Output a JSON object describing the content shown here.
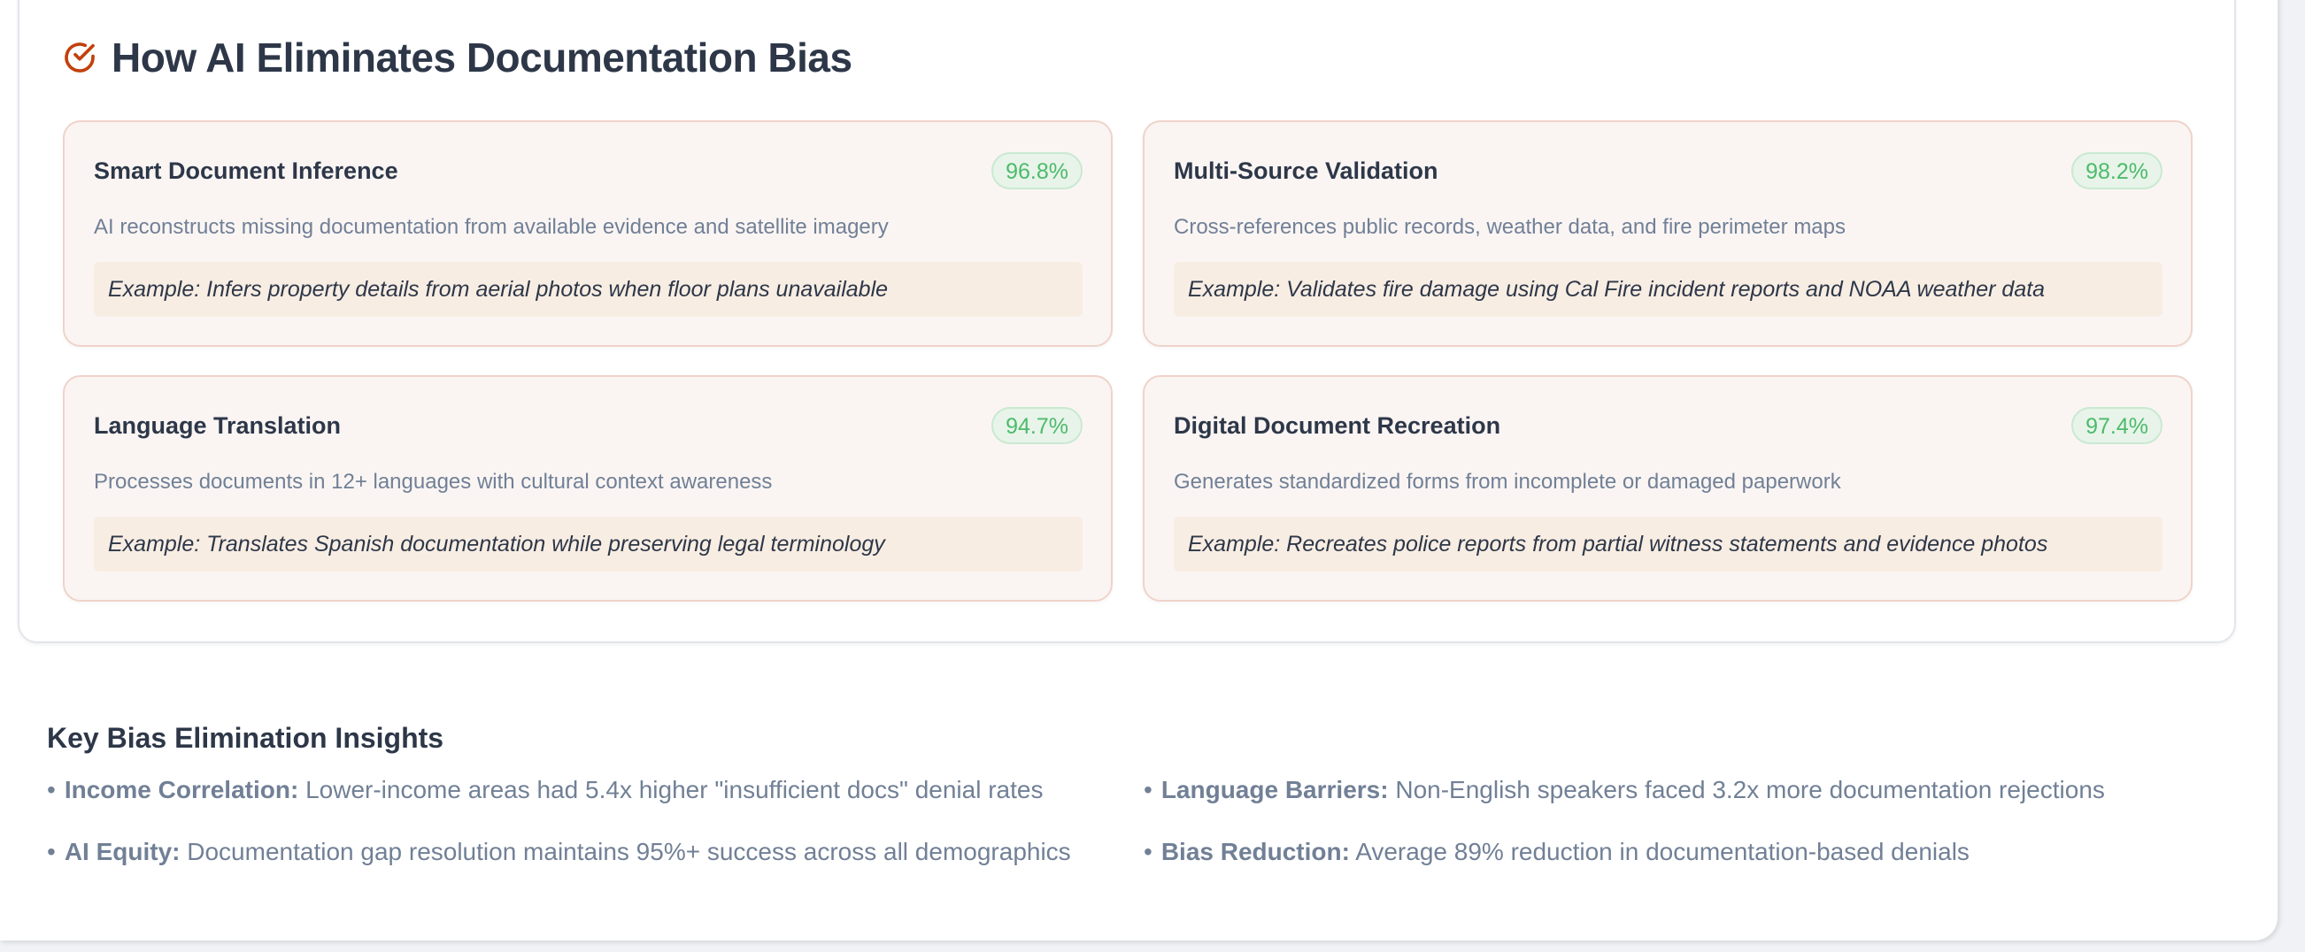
{
  "section": {
    "title": "How AI Eliminates Documentation Bias",
    "icon": "check-circle-icon",
    "accent_color": "#c2410c",
    "cards": [
      {
        "title": "Smart Document Inference",
        "badge": "96.8%",
        "description": "AI reconstructs missing documentation from available evidence and satellite imagery",
        "example": "Example: Infers property details from aerial photos when floor plans unavailable"
      },
      {
        "title": "Multi-Source Validation",
        "badge": "98.2%",
        "description": "Cross-references public records, weather data, and fire perimeter maps",
        "example": "Example: Validates fire damage using Cal Fire incident reports and NOAA weather data"
      },
      {
        "title": "Language Translation",
        "badge": "94.7%",
        "description": "Processes documents in 12+ languages with cultural context awareness",
        "example": "Example: Translates Spanish documentation while preserving legal terminology"
      },
      {
        "title": "Digital Document Recreation",
        "badge": "97.4%",
        "description": "Generates standardized forms from incomplete or damaged paperwork",
        "example": "Example: Recreates police reports from partial witness statements and evidence photos"
      }
    ]
  },
  "insights": {
    "title": "Key Bias Elimination Insights",
    "bullet": "•",
    "items": [
      {
        "label": "Income Correlation:",
        "text": "Lower-income areas had 5.4x higher \"insufficient docs\" denial rates"
      },
      {
        "label": "Language Barriers:",
        "text": "Non-English speakers faced 3.2x more documentation rejections"
      },
      {
        "label": "AI Equity:",
        "text": "Documentation gap resolution maintains 95%+ success across all demographics"
      },
      {
        "label": "Bias Reduction:",
        "text": "Average 89% reduction in documentation-based denials"
      }
    ]
  }
}
